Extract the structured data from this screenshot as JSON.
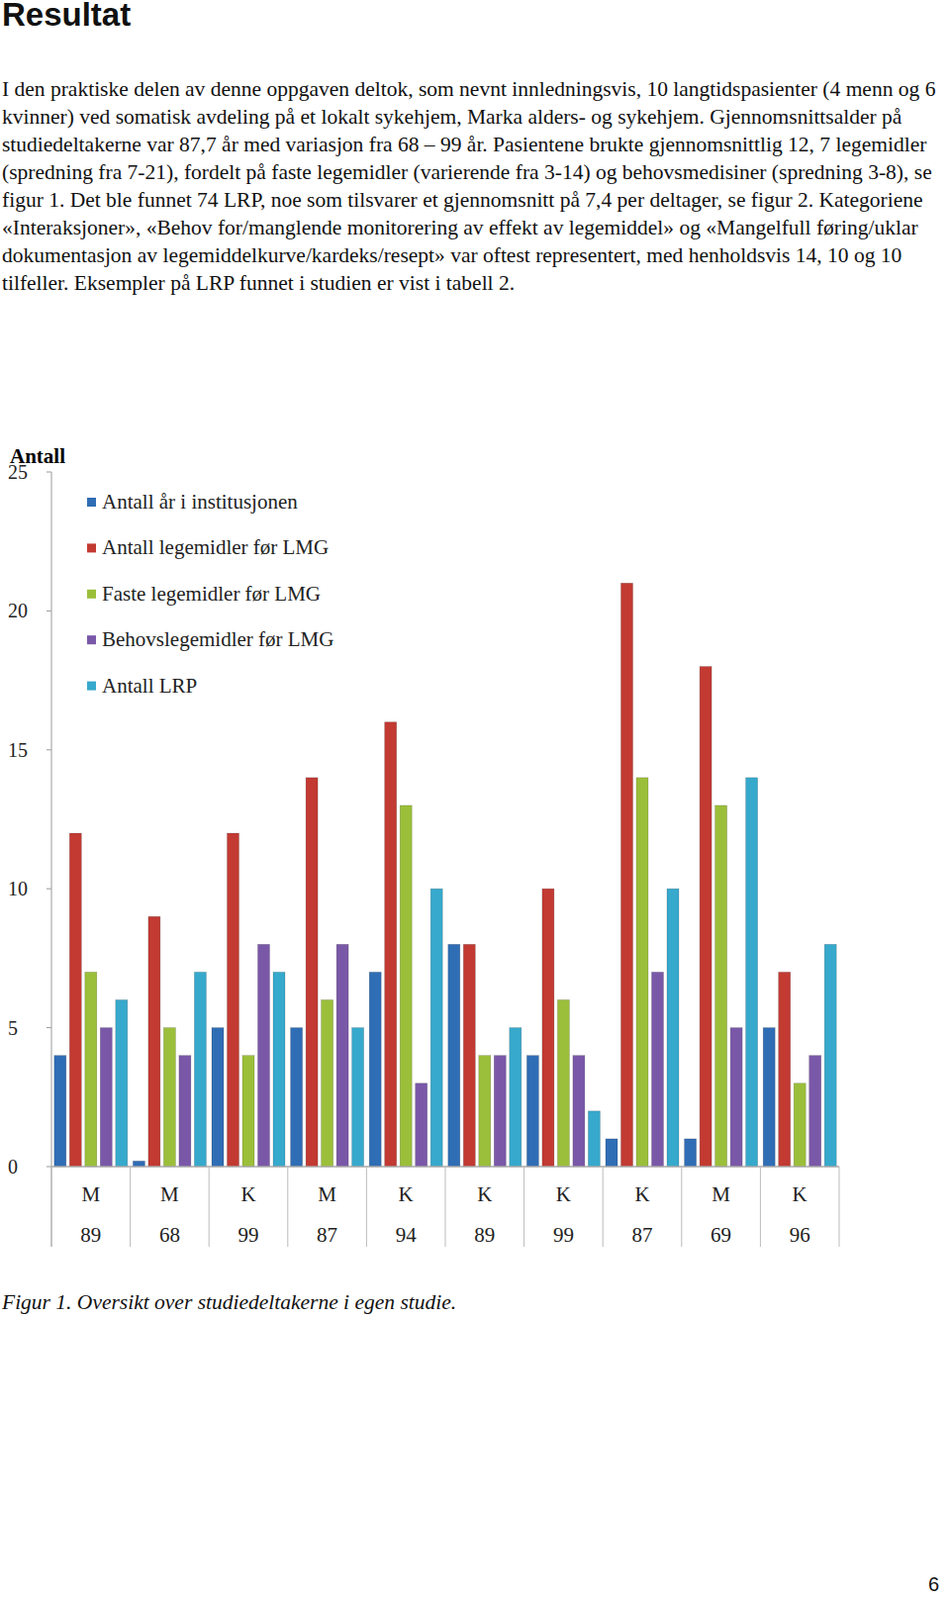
{
  "heading": "Resultat",
  "paragraph": "I den praktiske delen av denne oppgaven deltok, som nevnt innledningsvis, 10 langtidspasienter (4 menn og 6 kvinner) ved somatisk avdeling på et lokalt sykehjem, Marka alders- og sykehjem. Gjennomsnittsalder på studiedeltakerne var 87,7 år med variasjon fra 68 – 99 år. Pasientene brukte gjennomsnittlig 12, 7 legemidler (spredning fra 7-21), fordelt på faste legemidler (varierende fra 3-14) og behovsmedisiner (spredning 3-8), se figur 1. Det ble funnet 74 LRP, noe som tilsvarer et gjennomsnitt på 7,4 per deltager, se figur 2. Kategoriene «Interaksjoner», «Behov for/manglende monitorering av effekt av legemiddel» og «Mangelfull føring/uklar dokumentasjon av legemiddelkurve/kardeks/resept» var oftest representert, med henholdsvis 14, 10 og 10 tilfeller. Eksempler på LRP funnet i studien er vist i tabell 2.",
  "chart_data": {
    "type": "bar",
    "y_label": "Antall",
    "categories": [
      [
        "M",
        "89"
      ],
      [
        "M",
        "68"
      ],
      [
        "K",
        "99"
      ],
      [
        "M",
        "87"
      ],
      [
        "K",
        "94"
      ],
      [
        "K",
        "89"
      ],
      [
        "K",
        "99"
      ],
      [
        "K",
        "87"
      ],
      [
        "M",
        "69"
      ],
      [
        "K",
        "96"
      ]
    ],
    "series": [
      {
        "name": "Antall år i institusjonen",
        "color": "#2f6db5",
        "values": [
          4,
          0.2,
          5,
          5,
          7,
          8,
          4,
          1,
          1,
          5
        ]
      },
      {
        "name": "Antall legemidler før LMG",
        "color": "#c23a32",
        "values": [
          12,
          9,
          12,
          14,
          16,
          8,
          10,
          21,
          18,
          7
        ]
      },
      {
        "name": "Faste legemidler før LMG",
        "color": "#9bbf3a",
        "values": [
          7,
          5,
          4,
          6,
          13,
          4,
          6,
          14,
          13,
          3
        ]
      },
      {
        "name": "Behovslegemidler før LMG",
        "color": "#7a58a8",
        "values": [
          5,
          4,
          8,
          8,
          3,
          4,
          4,
          7,
          5,
          4
        ]
      },
      {
        "name": "Antall LRP",
        "color": "#36a9cc",
        "values": [
          6,
          7,
          7,
          5,
          10,
          5,
          2,
          10,
          14,
          8
        ]
      }
    ],
    "ylim": [
      0,
      25
    ],
    "yticks": [
      0,
      5,
      10,
      15,
      20,
      25
    ],
    "grid": false,
    "legend": "top-left"
  },
  "caption": "Figur 1. Oversikt over studiedeltakerne i egen studie.",
  "page_number": "6"
}
